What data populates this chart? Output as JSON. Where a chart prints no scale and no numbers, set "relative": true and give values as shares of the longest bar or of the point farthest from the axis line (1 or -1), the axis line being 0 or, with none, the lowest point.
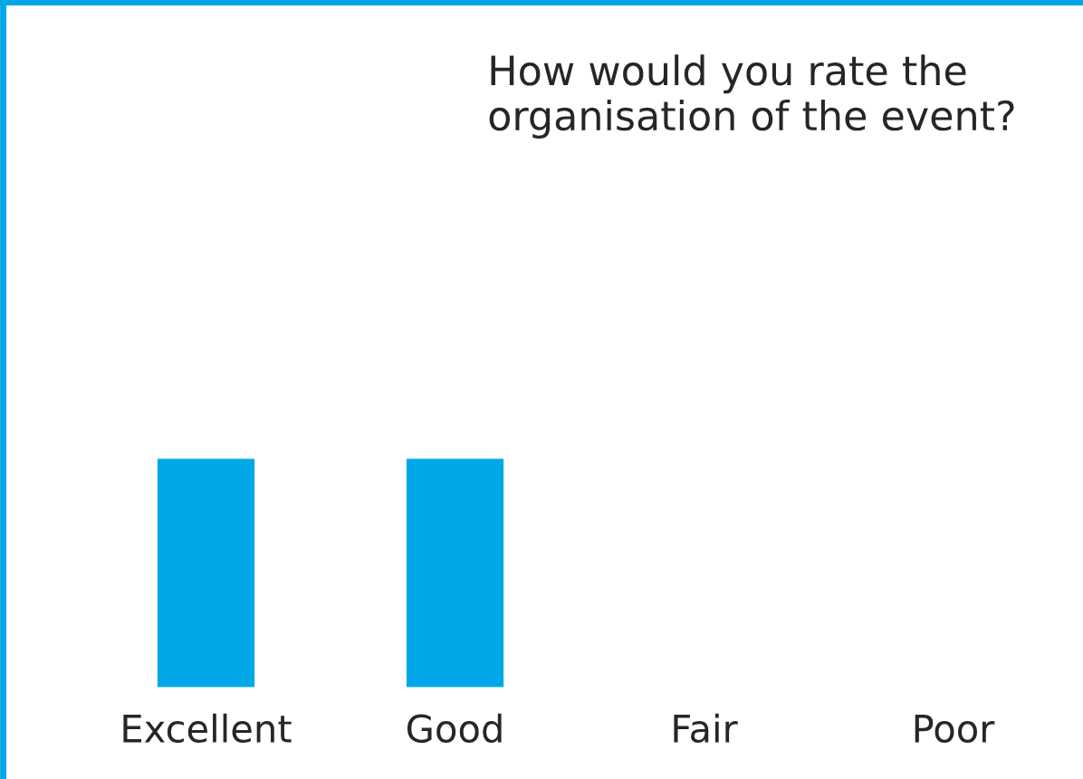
{
  "chart_data": {
    "type": "bar",
    "title": "How would you rate the organisation of the event?",
    "categories": [
      "Excellent",
      "Good",
      "Fair",
      "Poor"
    ],
    "values": [
      1,
      1,
      0,
      0
    ],
    "color": "#00a8e8",
    "relative": true,
    "grid": false,
    "legend": false
  }
}
